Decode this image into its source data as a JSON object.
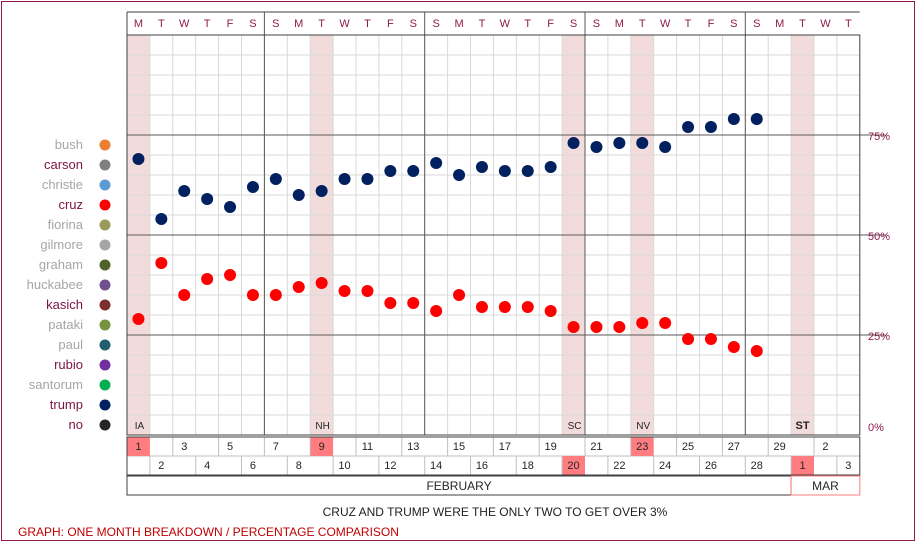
{
  "chart_data": {
    "type": "scatter",
    "title": "",
    "xlabel": "FEBRUARY",
    "ylabel": "",
    "ylim": [
      0,
      100
    ],
    "y_ticks": [
      "0%",
      "25%",
      "50%",
      "75%"
    ],
    "grid": true,
    "legend_placement": "left",
    "weekday_headers": [
      "M",
      "T",
      "W",
      "T",
      "F",
      "S",
      "S",
      "M",
      "T",
      "W",
      "T",
      "F",
      "S",
      "S",
      "M",
      "T",
      "W",
      "T",
      "F",
      "S",
      "S",
      "M",
      "T",
      "W",
      "T",
      "F",
      "S",
      "S",
      "M",
      "T",
      "W",
      "T"
    ],
    "day_numbers": [
      "1",
      "2",
      "3",
      "4",
      "5",
      "6",
      "7",
      "8",
      "9",
      "10",
      "11",
      "12",
      "13",
      "14",
      "15",
      "16",
      "17",
      "18",
      "19",
      "20",
      "21",
      "22",
      "23",
      "24",
      "25",
      "26",
      "27",
      "28",
      "29",
      "1",
      "2",
      "3"
    ],
    "months": [
      "FEBRUARY",
      "MAR"
    ],
    "events": [
      {
        "label": "IA",
        "day_index": 0
      },
      {
        "label": "NH",
        "day_index": 8
      },
      {
        "label": "SC",
        "day_index": 19
      },
      {
        "label": "NV",
        "day_index": 22
      },
      {
        "label": "ST",
        "day_index": 29
      }
    ],
    "legend": [
      {
        "name": "bush",
        "color": "#ed7d31",
        "active": false
      },
      {
        "name": "carson",
        "color": "#7f7f7f",
        "active": true
      },
      {
        "name": "christie",
        "color": "#5b9bd5",
        "active": false
      },
      {
        "name": "cruz",
        "color": "#ff0000",
        "active": true
      },
      {
        "name": "fiorina",
        "color": "#9a9a5a",
        "active": false
      },
      {
        "name": "gilmore",
        "color": "#a5a5a5",
        "active": false
      },
      {
        "name": "graham",
        "color": "#4f6228",
        "active": false
      },
      {
        "name": "huckabee",
        "color": "#6f4f8f",
        "active": false
      },
      {
        "name": "kasich",
        "color": "#7b2f2f",
        "active": true
      },
      {
        "name": "pataki",
        "color": "#77933c",
        "active": false
      },
      {
        "name": "paul",
        "color": "#215f70",
        "active": false
      },
      {
        "name": "rubio",
        "color": "#7030a0",
        "active": true
      },
      {
        "name": "santorum",
        "color": "#00b050",
        "active": false
      },
      {
        "name": "trump",
        "color": "#002060",
        "active": true
      },
      {
        "name": "no",
        "color": "#262626",
        "active": true
      }
    ],
    "series": [
      {
        "name": "trump",
        "color": "#002060",
        "points": [
          [
            0,
            69
          ],
          [
            1,
            54
          ],
          [
            2,
            61
          ],
          [
            3,
            59
          ],
          [
            4,
            57
          ],
          [
            5,
            62
          ],
          [
            6,
            64
          ],
          [
            7,
            60
          ],
          [
            8,
            61
          ],
          [
            9,
            64
          ],
          [
            10,
            64
          ],
          [
            11,
            66
          ],
          [
            12,
            66
          ],
          [
            13,
            68
          ],
          [
            14,
            65
          ],
          [
            15,
            67
          ],
          [
            16,
            66
          ],
          [
            17,
            66
          ],
          [
            18,
            67
          ],
          [
            19,
            73
          ],
          [
            20,
            72
          ],
          [
            21,
            73
          ],
          [
            22,
            73
          ],
          [
            23,
            72
          ],
          [
            24,
            77
          ],
          [
            25,
            77
          ],
          [
            26,
            79
          ],
          [
            27,
            79
          ]
        ]
      },
      {
        "name": "cruz",
        "color": "#ff0000",
        "points": [
          [
            0,
            29
          ],
          [
            1,
            43
          ],
          [
            2,
            35
          ],
          [
            3,
            39
          ],
          [
            4,
            40
          ],
          [
            5,
            35
          ],
          [
            6,
            35
          ],
          [
            7,
            37
          ],
          [
            8,
            38
          ],
          [
            9,
            36
          ],
          [
            10,
            36
          ],
          [
            11,
            33
          ],
          [
            12,
            33
          ],
          [
            13,
            31
          ],
          [
            14,
            35
          ],
          [
            15,
            32
          ],
          [
            16,
            32
          ],
          [
            17,
            32
          ],
          [
            18,
            31
          ],
          [
            19,
            27
          ],
          [
            20,
            27
          ],
          [
            21,
            27
          ],
          [
            22,
            28
          ],
          [
            23,
            28
          ],
          [
            24,
            24
          ],
          [
            25,
            24
          ],
          [
            26,
            22
          ],
          [
            27,
            21
          ]
        ]
      }
    ]
  },
  "annotation": "CRUZ AND TRUMP WERE THE ONLY TWO TO GET OVER 3%",
  "caption": "GRAPH: ONE MONTH BREAKDOWN / PERCENTAGE COMPARISON",
  "colors": {
    "highlight_band": "#f2dcdb",
    "highlight_cell": "#ff7c80",
    "active_label": "#7b1448",
    "inactive_label": "#a6a6a6",
    "grid_major": "#595959",
    "grid_minor": "#d9d9d9",
    "axis_label": "#8e1a4e"
  }
}
